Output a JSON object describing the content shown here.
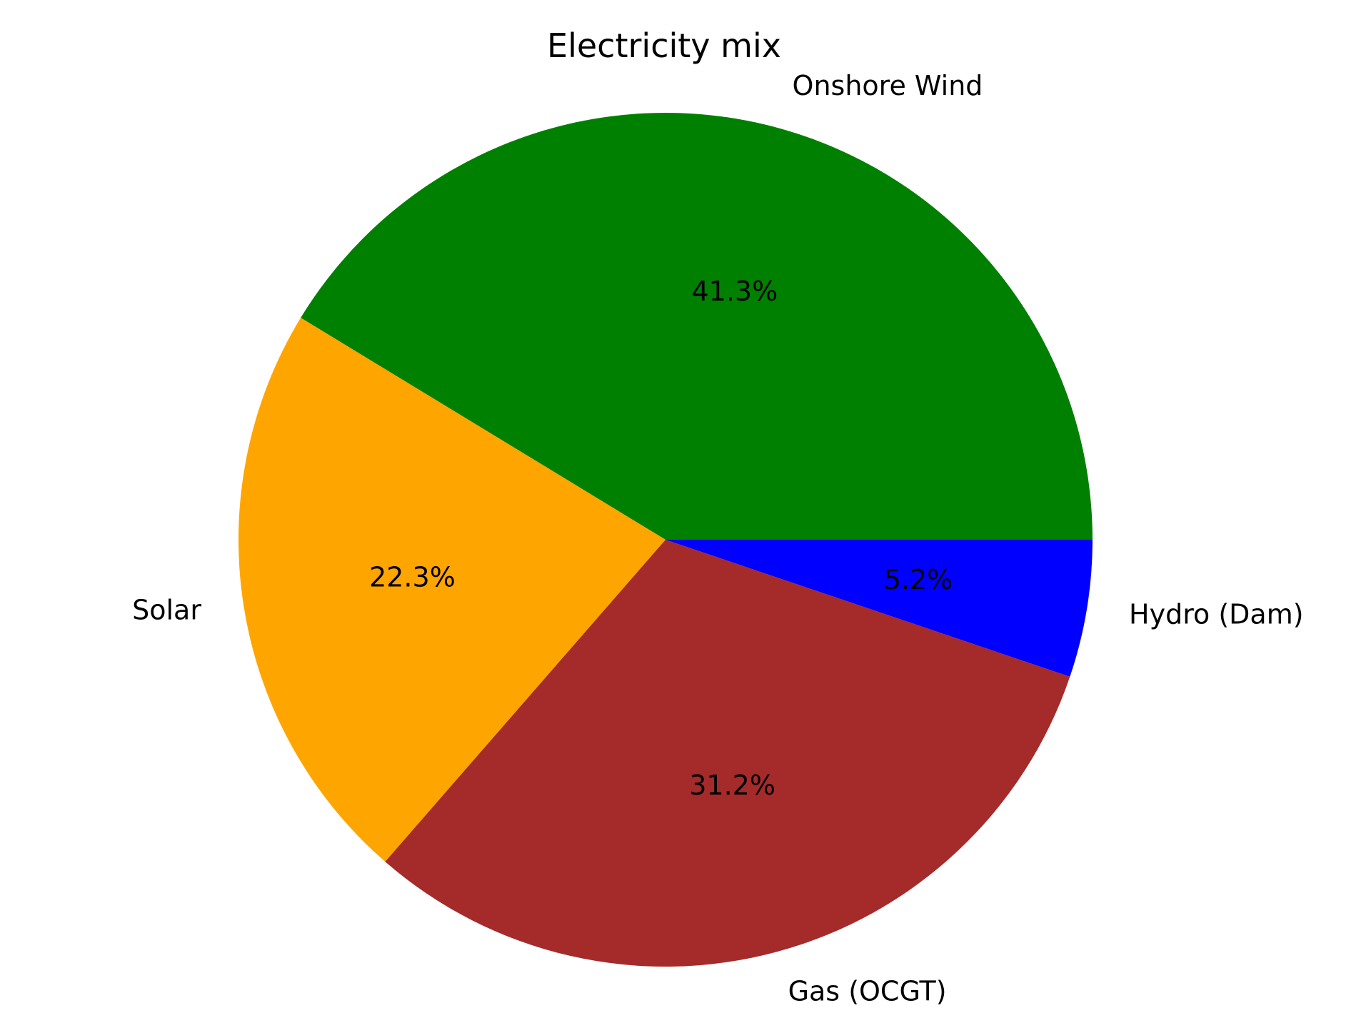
{
  "chart_data": {
    "type": "pie",
    "title": "Electricity mix",
    "categories": [
      "Onshore Wind",
      "Solar",
      "Gas (OCGT)",
      "Hydro (Dam)"
    ],
    "values": [
      41.3,
      22.3,
      31.2,
      5.2
    ],
    "value_labels": [
      "41.3%",
      "22.3%",
      "31.2%",
      "5.2%"
    ],
    "colors": [
      "#008000",
      "#FFA500",
      "#A52A2A",
      "#0000FF"
    ],
    "start_angle_deg": 0,
    "direction": "counterclockwise",
    "legend": "none"
  }
}
